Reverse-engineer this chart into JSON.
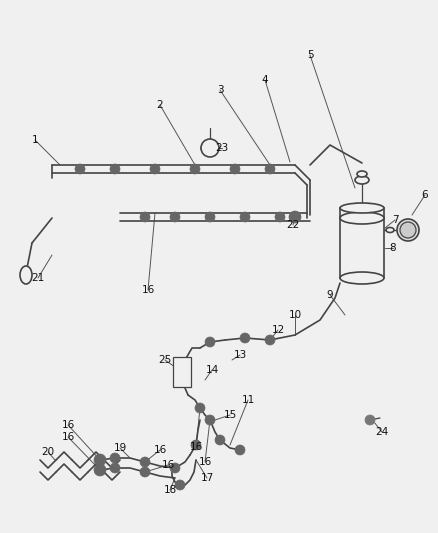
{
  "bg_color": "#f0f0f0",
  "line_color": "#555555",
  "dark_color": "#333333",
  "label_color": "#111111",
  "fig_width": 4.38,
  "fig_height": 5.33,
  "dpi": 100
}
